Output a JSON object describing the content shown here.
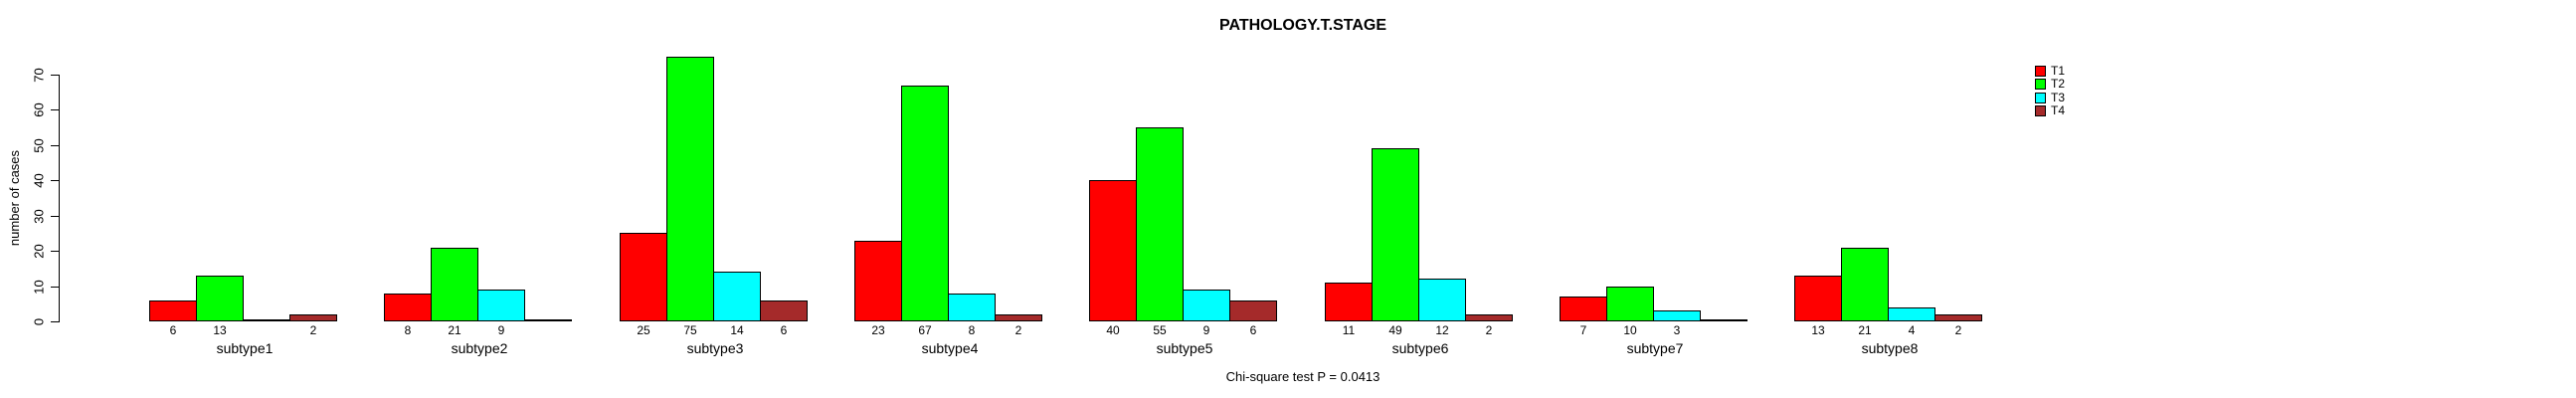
{
  "chart_data": {
    "type": "bar",
    "title": "PATHOLOGY.T.STAGE",
    "ylabel": "number of cases",
    "xlabel": "",
    "ylim": [
      0,
      75
    ],
    "yticks": [
      0,
      10,
      20,
      30,
      40,
      50,
      60,
      70
    ],
    "grid": false,
    "legend_position": "top-right",
    "caption": "Chi-square test P = 0.0413",
    "categories": [
      "subtype1",
      "subtype2",
      "subtype3",
      "subtype4",
      "subtype5",
      "subtype6",
      "subtype7",
      "subtype8"
    ],
    "series": [
      {
        "name": "T1",
        "color": "#FF0000",
        "values": [
          6,
          8,
          25,
          23,
          40,
          11,
          7,
          13
        ]
      },
      {
        "name": "T2",
        "color": "#00FF00",
        "values": [
          13,
          21,
          75,
          67,
          55,
          49,
          10,
          21
        ]
      },
      {
        "name": "T3",
        "color": "#00FFFF",
        "values": [
          0,
          9,
          14,
          8,
          9,
          12,
          3,
          4
        ]
      },
      {
        "name": "T4",
        "color": "#A52A2A",
        "values": [
          2,
          0,
          6,
          2,
          6,
          2,
          0,
          2
        ]
      }
    ],
    "bar_count_labels_shown_only_when_positive": true
  }
}
